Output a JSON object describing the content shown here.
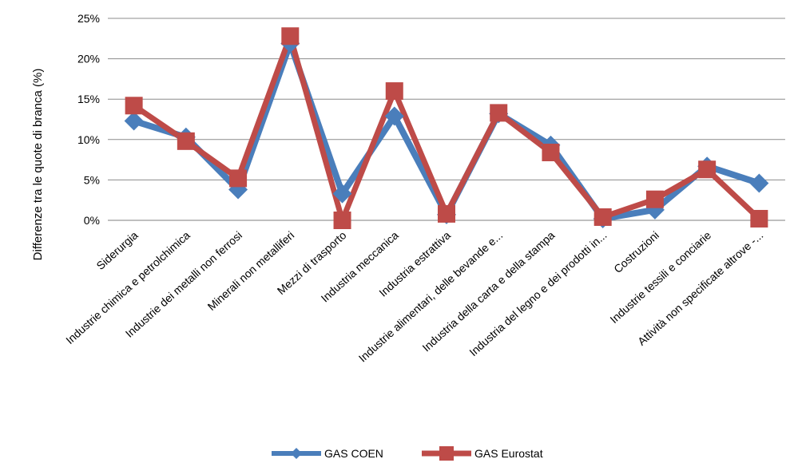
{
  "chart_data": {
    "type": "line",
    "title": "",
    "xlabel": "",
    "ylabel": "Differenze tra le quote di branca (%)",
    "ylim": [
      0,
      25
    ],
    "yticks": [
      "0%",
      "5%",
      "10%",
      "15%",
      "20%",
      "25%"
    ],
    "grid": true,
    "legend_position": "bottom",
    "categories": [
      "Siderurgia",
      "Industrie chimica e petrolchimica",
      "Industrie dei metalli non ferrosi",
      "Minerali non metalliferi",
      "Mezzi di trasporto",
      "Industria meccanica",
      "Industria estrattiva",
      "Industrie alimentari, delle bevande e...",
      "Industria della carta e della stampa",
      "Industria del legno e dei prodotti in...",
      "Costruzioni",
      "Industrie tessili e conciarie",
      "Attività non specificate altrove -..."
    ],
    "series": [
      {
        "name": "GAS COEN",
        "color": "#4a7ebb",
        "marker": "diamond",
        "values": [
          12.3,
          10.3,
          3.8,
          21.9,
          3.3,
          12.9,
          0.7,
          13.2,
          9.3,
          0.2,
          1.3,
          6.7,
          4.6
        ]
      },
      {
        "name": "GAS Eurostat",
        "color": "#be4b48",
        "marker": "square",
        "values": [
          14.2,
          9.8,
          5.2,
          22.8,
          0.0,
          16.0,
          0.8,
          13.3,
          8.4,
          0.4,
          2.6,
          6.3,
          0.2
        ]
      }
    ]
  }
}
